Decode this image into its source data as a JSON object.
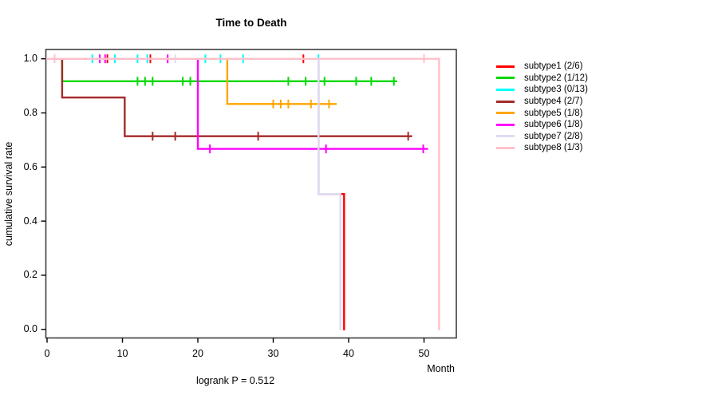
{
  "chart_data": {
    "type": "line",
    "variant": "kaplan-meier-step",
    "title": "Time to Death",
    "xlabel": "Month",
    "ylabel": "cumulative survival rate",
    "annotation": "logrank P = 0.512",
    "xlim": [
      0,
      54.3
    ],
    "ylim": [
      0.0,
      1.0
    ],
    "xticks": [
      0,
      10,
      20,
      30,
      40,
      50
    ],
    "yticks": [
      0.0,
      0.2,
      0.4,
      0.6,
      0.8,
      1.0
    ],
    "grid": false,
    "legend_position": "right",
    "frame_color": "#3f3f3f",
    "series": [
      {
        "name": "subtype1 (2/6)",
        "color": "#ff0000",
        "steps": [
          [
            0,
            1
          ],
          [
            36,
            1
          ],
          [
            36,
            0.5
          ],
          [
            39.4,
            0.5
          ],
          [
            39.4,
            0
          ]
        ],
        "censor_ticks": [
          [
            8,
            1
          ],
          [
            13.7,
            1
          ],
          [
            34,
            1
          ]
        ]
      },
      {
        "name": "subtype2 (1/12)",
        "color": "#00d900",
        "steps": [
          [
            0,
            1
          ],
          [
            2,
            1
          ],
          [
            2,
            0.917
          ],
          [
            46.3,
            0.917
          ]
        ],
        "censor_ticks": [
          [
            12,
            0.917
          ],
          [
            13,
            0.917
          ],
          [
            14,
            0.917
          ],
          [
            18,
            0.917
          ],
          [
            19,
            0.917
          ],
          [
            32,
            0.917
          ],
          [
            34.3,
            0.917
          ],
          [
            36.8,
            0.917
          ],
          [
            41,
            0.917
          ],
          [
            43,
            0.917
          ],
          [
            46,
            0.917
          ]
        ]
      },
      {
        "name": "subtype3 (0/13)",
        "color": "#00ffff",
        "steps": [
          [
            0,
            1
          ],
          [
            36,
            1
          ]
        ],
        "censor_ticks": [
          [
            6,
            1
          ],
          [
            9,
            1
          ],
          [
            12,
            1
          ],
          [
            13.3,
            1
          ],
          [
            21,
            1
          ],
          [
            23,
            1
          ],
          [
            26,
            1
          ],
          [
            36,
            1
          ]
        ]
      },
      {
        "name": "subtype4 (2/7)",
        "color": "#a52a2a",
        "steps": [
          [
            0,
            1
          ],
          [
            2,
            1
          ],
          [
            2,
            0.857
          ],
          [
            10.3,
            0.857
          ],
          [
            10.3,
            0.714
          ],
          [
            48.3,
            0.714
          ]
        ],
        "censor_ticks": [
          [
            14,
            0.714
          ],
          [
            17,
            0.714
          ],
          [
            28,
            0.714
          ],
          [
            47.9,
            0.714
          ]
        ]
      },
      {
        "name": "subtype5 (1/8)",
        "color": "#ffa500",
        "steps": [
          [
            0,
            1
          ],
          [
            23.9,
            1
          ],
          [
            23.9,
            0.833
          ],
          [
            38.3,
            0.833
          ]
        ],
        "censor_ticks": [
          [
            30,
            0.833
          ],
          [
            31,
            0.833
          ],
          [
            32,
            0.833
          ],
          [
            35,
            0.833
          ],
          [
            37.4,
            0.833
          ]
        ]
      },
      {
        "name": "subtype6 (1/8)",
        "color": "#ff00ff",
        "steps": [
          [
            0,
            1
          ],
          [
            20,
            1
          ],
          [
            20,
            0.667
          ],
          [
            50.4,
            0.667
          ]
        ],
        "censor_ticks": [
          [
            7,
            1
          ],
          [
            7.7,
            1
          ],
          [
            16,
            1
          ],
          [
            21.6,
            0.667
          ],
          [
            37,
            0.667
          ],
          [
            49.9,
            0.667
          ]
        ]
      },
      {
        "name": "subtype7 (2/8)",
        "color": "#dcdcf5",
        "steps": [
          [
            0,
            1
          ],
          [
            36,
            1
          ],
          [
            36,
            0.5
          ],
          [
            38.9,
            0.5
          ],
          [
            38.9,
            0
          ]
        ],
        "censor_ticks": [
          [
            17,
            1
          ]
        ]
      },
      {
        "name": "subtype8 (1/3)",
        "color": "#ffc0cb",
        "steps": [
          [
            0,
            1
          ],
          [
            52,
            1
          ],
          [
            52,
            0
          ]
        ],
        "censor_ticks": [
          [
            1,
            1
          ],
          [
            50,
            1
          ]
        ]
      }
    ]
  }
}
